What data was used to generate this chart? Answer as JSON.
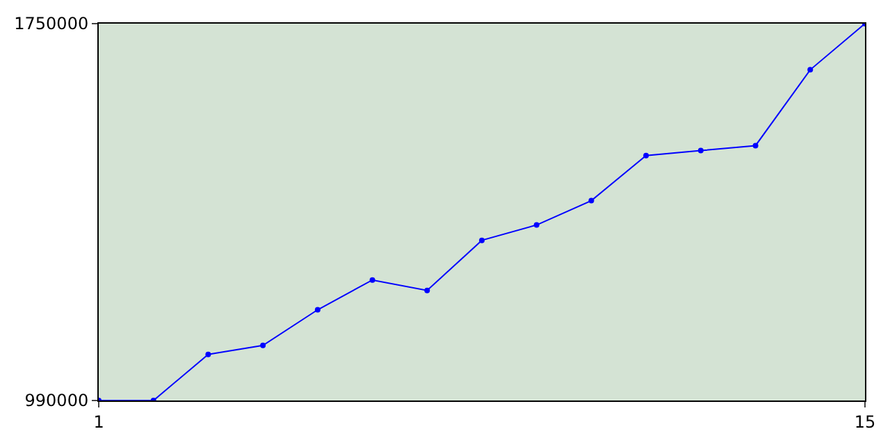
{
  "chart_data": {
    "type": "line",
    "x": [
      1,
      2,
      3,
      4,
      5,
      6,
      7,
      8,
      9,
      10,
      11,
      12,
      13,
      14,
      15
    ],
    "series": [
      {
        "color": "#0000ff",
        "values": [
          990000,
          990000,
          1083000,
          1101000,
          1173000,
          1233000,
          1212000,
          1313000,
          1344000,
          1393000,
          1484000,
          1494000,
          1504000,
          1657000,
          1750000
        ]
      }
    ],
    "xlim": [
      1,
      15
    ],
    "xticks": [
      1,
      15
    ],
    "ylim": [
      990000,
      1750000
    ],
    "yticks": [
      990000,
      1750000
    ],
    "marker": "circle",
    "line_style": "solid"
  }
}
